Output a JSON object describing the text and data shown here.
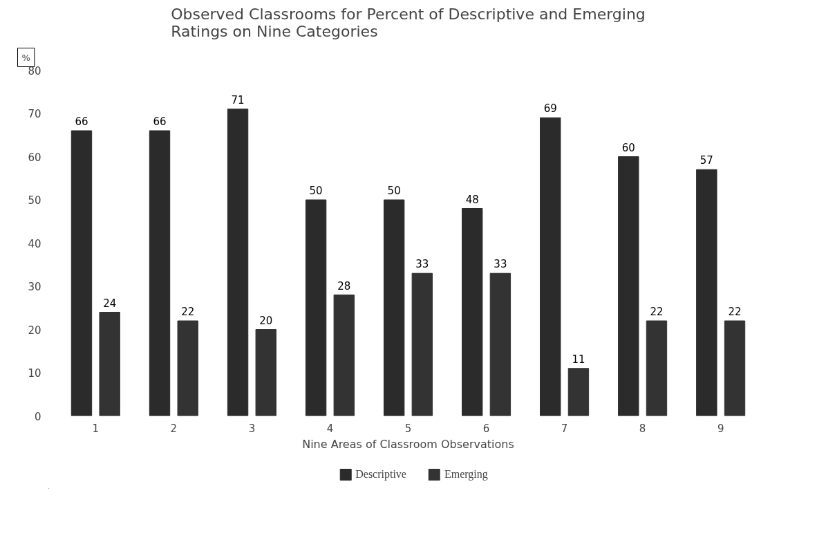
{
  "chart_data": {
    "type": "bar",
    "title": "Observed Classrooms for Percent of Descriptive and Emerging Ratings on Nine Categories",
    "xlabel": "Nine Areas of Classroom Observations",
    "ylabel": "%",
    "categories": [
      "1",
      "2",
      "3",
      "4",
      "5",
      "6",
      "7",
      "8",
      "9"
    ],
    "series": [
      {
        "name": "Descriptive",
        "color": "#2b2b2b",
        "values": [
          66,
          66,
          71,
          50,
          50,
          48,
          69,
          60,
          57
        ]
      },
      {
        "name": "Emerging",
        "color": "#333333",
        "values": [
          24,
          22,
          20,
          28,
          33,
          33,
          11,
          22,
          22
        ]
      }
    ],
    "ylim": [
      0,
      80
    ],
    "yticks": [
      0,
      10,
      20,
      30,
      40,
      50,
      60,
      70,
      80
    ],
    "grid": false,
    "legend": "bottom",
    "data_labels": true
  }
}
